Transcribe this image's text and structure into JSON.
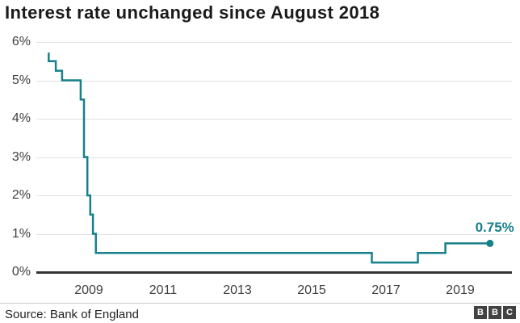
{
  "title": "Interest rate unchanged since August 2018",
  "source": "Source: Bank of England",
  "logo": {
    "letters": [
      "B",
      "B",
      "C"
    ]
  },
  "colors": {
    "line": "#17808a",
    "dot": "#17808a",
    "annotation": "#17808a",
    "grid": "#e0e0e0",
    "zero_axis": "#333333",
    "title": "#1a1a1a",
    "tick": "#3f3f3f"
  },
  "chart_data": {
    "type": "line",
    "title": "Interest rate unchanged since August 2018",
    "step": true,
    "grid": true,
    "legend": "none",
    "x_domain": [
      2007.6,
      2020.37
    ],
    "y_domain": [
      0,
      6
    ],
    "x_ticks": [
      {
        "t": 2009,
        "label": "2009"
      },
      {
        "t": 2011,
        "label": "2011"
      },
      {
        "t": 2013,
        "label": "2013"
      },
      {
        "t": 2015,
        "label": "2015"
      },
      {
        "t": 2017,
        "label": "2017"
      },
      {
        "t": 2019,
        "label": "2019"
      }
    ],
    "y_ticks": [
      {
        "v": 0,
        "label": "0%"
      },
      {
        "v": 1,
        "label": "1%"
      },
      {
        "v": 2,
        "label": "2%"
      },
      {
        "v": 3,
        "label": "3%"
      },
      {
        "v": 4,
        "label": "4%"
      },
      {
        "v": 5,
        "label": "5%"
      },
      {
        "v": 6,
        "label": "6%"
      }
    ],
    "series": [
      {
        "name": "Bank of England interest rate",
        "points": [
          [
            2007.9,
            5.7
          ],
          [
            2007.92,
            5.5
          ],
          [
            2008.11,
            5.25
          ],
          [
            2008.28,
            5.0
          ],
          [
            2008.78,
            4.5
          ],
          [
            2008.87,
            3.0
          ],
          [
            2008.96,
            2.0
          ],
          [
            2009.04,
            1.5
          ],
          [
            2009.11,
            1.0
          ],
          [
            2009.19,
            0.5
          ],
          [
            2016.62,
            0.25
          ],
          [
            2017.86,
            0.5
          ],
          [
            2018.6,
            0.75
          ],
          [
            2019.8,
            0.75
          ]
        ]
      }
    ],
    "end_label": "0.75%"
  }
}
